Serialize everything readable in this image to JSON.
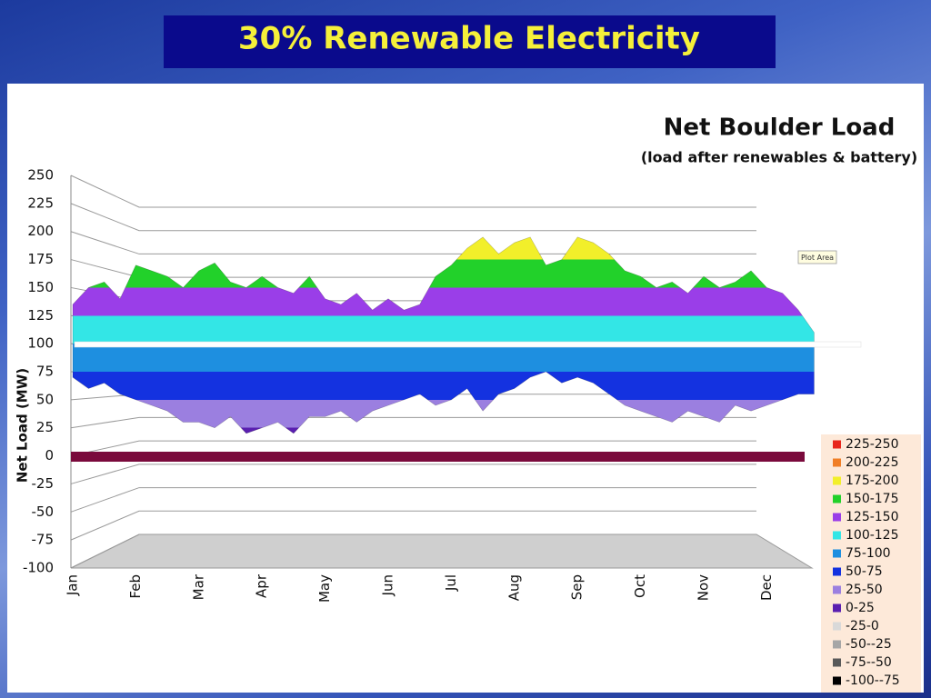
{
  "slide_title": "30% Renewable Electricity",
  "chart_data": {
    "type": "surface",
    "title": "Net Boulder Load",
    "subtitle": "(load after renewables & battery)",
    "y_label": "Net Load (MW)",
    "annotation": "Plot Area",
    "categories": [
      "Jan",
      null,
      null,
      null,
      "Feb",
      null,
      null,
      null,
      "Mar",
      null,
      null,
      null,
      "Apr",
      null,
      null,
      null,
      "May",
      null,
      null,
      null,
      "Jun",
      null,
      null,
      null,
      "Jul",
      null,
      null,
      null,
      "Aug",
      null,
      null,
      null,
      "Sep",
      null,
      null,
      null,
      "Oct",
      null,
      null,
      null,
      "Nov",
      null,
      null,
      null,
      "Dec",
      null,
      null,
      null
    ],
    "series": [
      {
        "values": [
          135,
          150,
          155,
          140,
          170,
          165,
          160,
          150,
          165,
          172,
          155,
          150,
          160,
          150,
          145,
          160,
          140,
          135,
          145,
          130,
          140,
          130,
          135,
          160,
          170,
          185,
          195,
          180,
          190,
          195,
          170,
          175,
          195,
          190,
          180,
          165,
          160,
          150,
          155,
          145,
          160,
          150,
          155,
          165,
          150,
          145,
          130,
          110
        ]
      },
      {
        "values": [
          70,
          60,
          65,
          55,
          50,
          45,
          40,
          30,
          30,
          25,
          35,
          20,
          25,
          30,
          20,
          35,
          35,
          40,
          30,
          40,
          45,
          50,
          55,
          45,
          50,
          60,
          40,
          55,
          60,
          70,
          75,
          65,
          70,
          65,
          55,
          45,
          40,
          35,
          30,
          40,
          35,
          30,
          45,
          40,
          45,
          50,
          55,
          55
        ]
      }
    ],
    "ylim": [
      -100,
      250
    ],
    "yticks": [
      250,
      225,
      200,
      175,
      150,
      125,
      100,
      75,
      50,
      25,
      0,
      -25,
      -50,
      -75,
      -100
    ],
    "grid": true,
    "legend_position": "right",
    "bands": [
      {
        "label": "225-250",
        "range": [
          225,
          250
        ],
        "color": "#e8261c"
      },
      {
        "label": "200-225",
        "range": [
          200,
          225
        ],
        "color": "#f07e26"
      },
      {
        "label": "175-200",
        "range": [
          175,
          200
        ],
        "color": "#f2ef2a"
      },
      {
        "label": "150-175",
        "range": [
          150,
          175
        ],
        "color": "#22d12a"
      },
      {
        "label": "125-150",
        "range": [
          125,
          150
        ],
        "color": "#9a3ee8"
      },
      {
        "label": "100-125",
        "range": [
          100,
          125
        ],
        "color": "#33e6e6"
      },
      {
        "label": "75-100",
        "range": [
          75,
          100
        ],
        "color": "#1e8fe0"
      },
      {
        "label": "50-75",
        "range": [
          50,
          75
        ],
        "color": "#1432e0"
      },
      {
        "label": "25-50",
        "range": [
          25,
          50
        ],
        "color": "#9b7fe0"
      },
      {
        "label": "0-25",
        "range": [
          0,
          25
        ],
        "color": "#5a1fb0"
      },
      {
        "label": "-25-0",
        "range": [
          -25,
          0
        ],
        "color": "#d9d9d9"
      },
      {
        "label": "-50--25",
        "range": [
          -50,
          -25
        ],
        "color": "#a6a6a6"
      },
      {
        "label": "-75--50",
        "range": [
          -75,
          -50
        ],
        "color": "#595959"
      },
      {
        "label": "-100--75",
        "range": [
          -100,
          -75
        ],
        "color": "#000000"
      }
    ]
  }
}
